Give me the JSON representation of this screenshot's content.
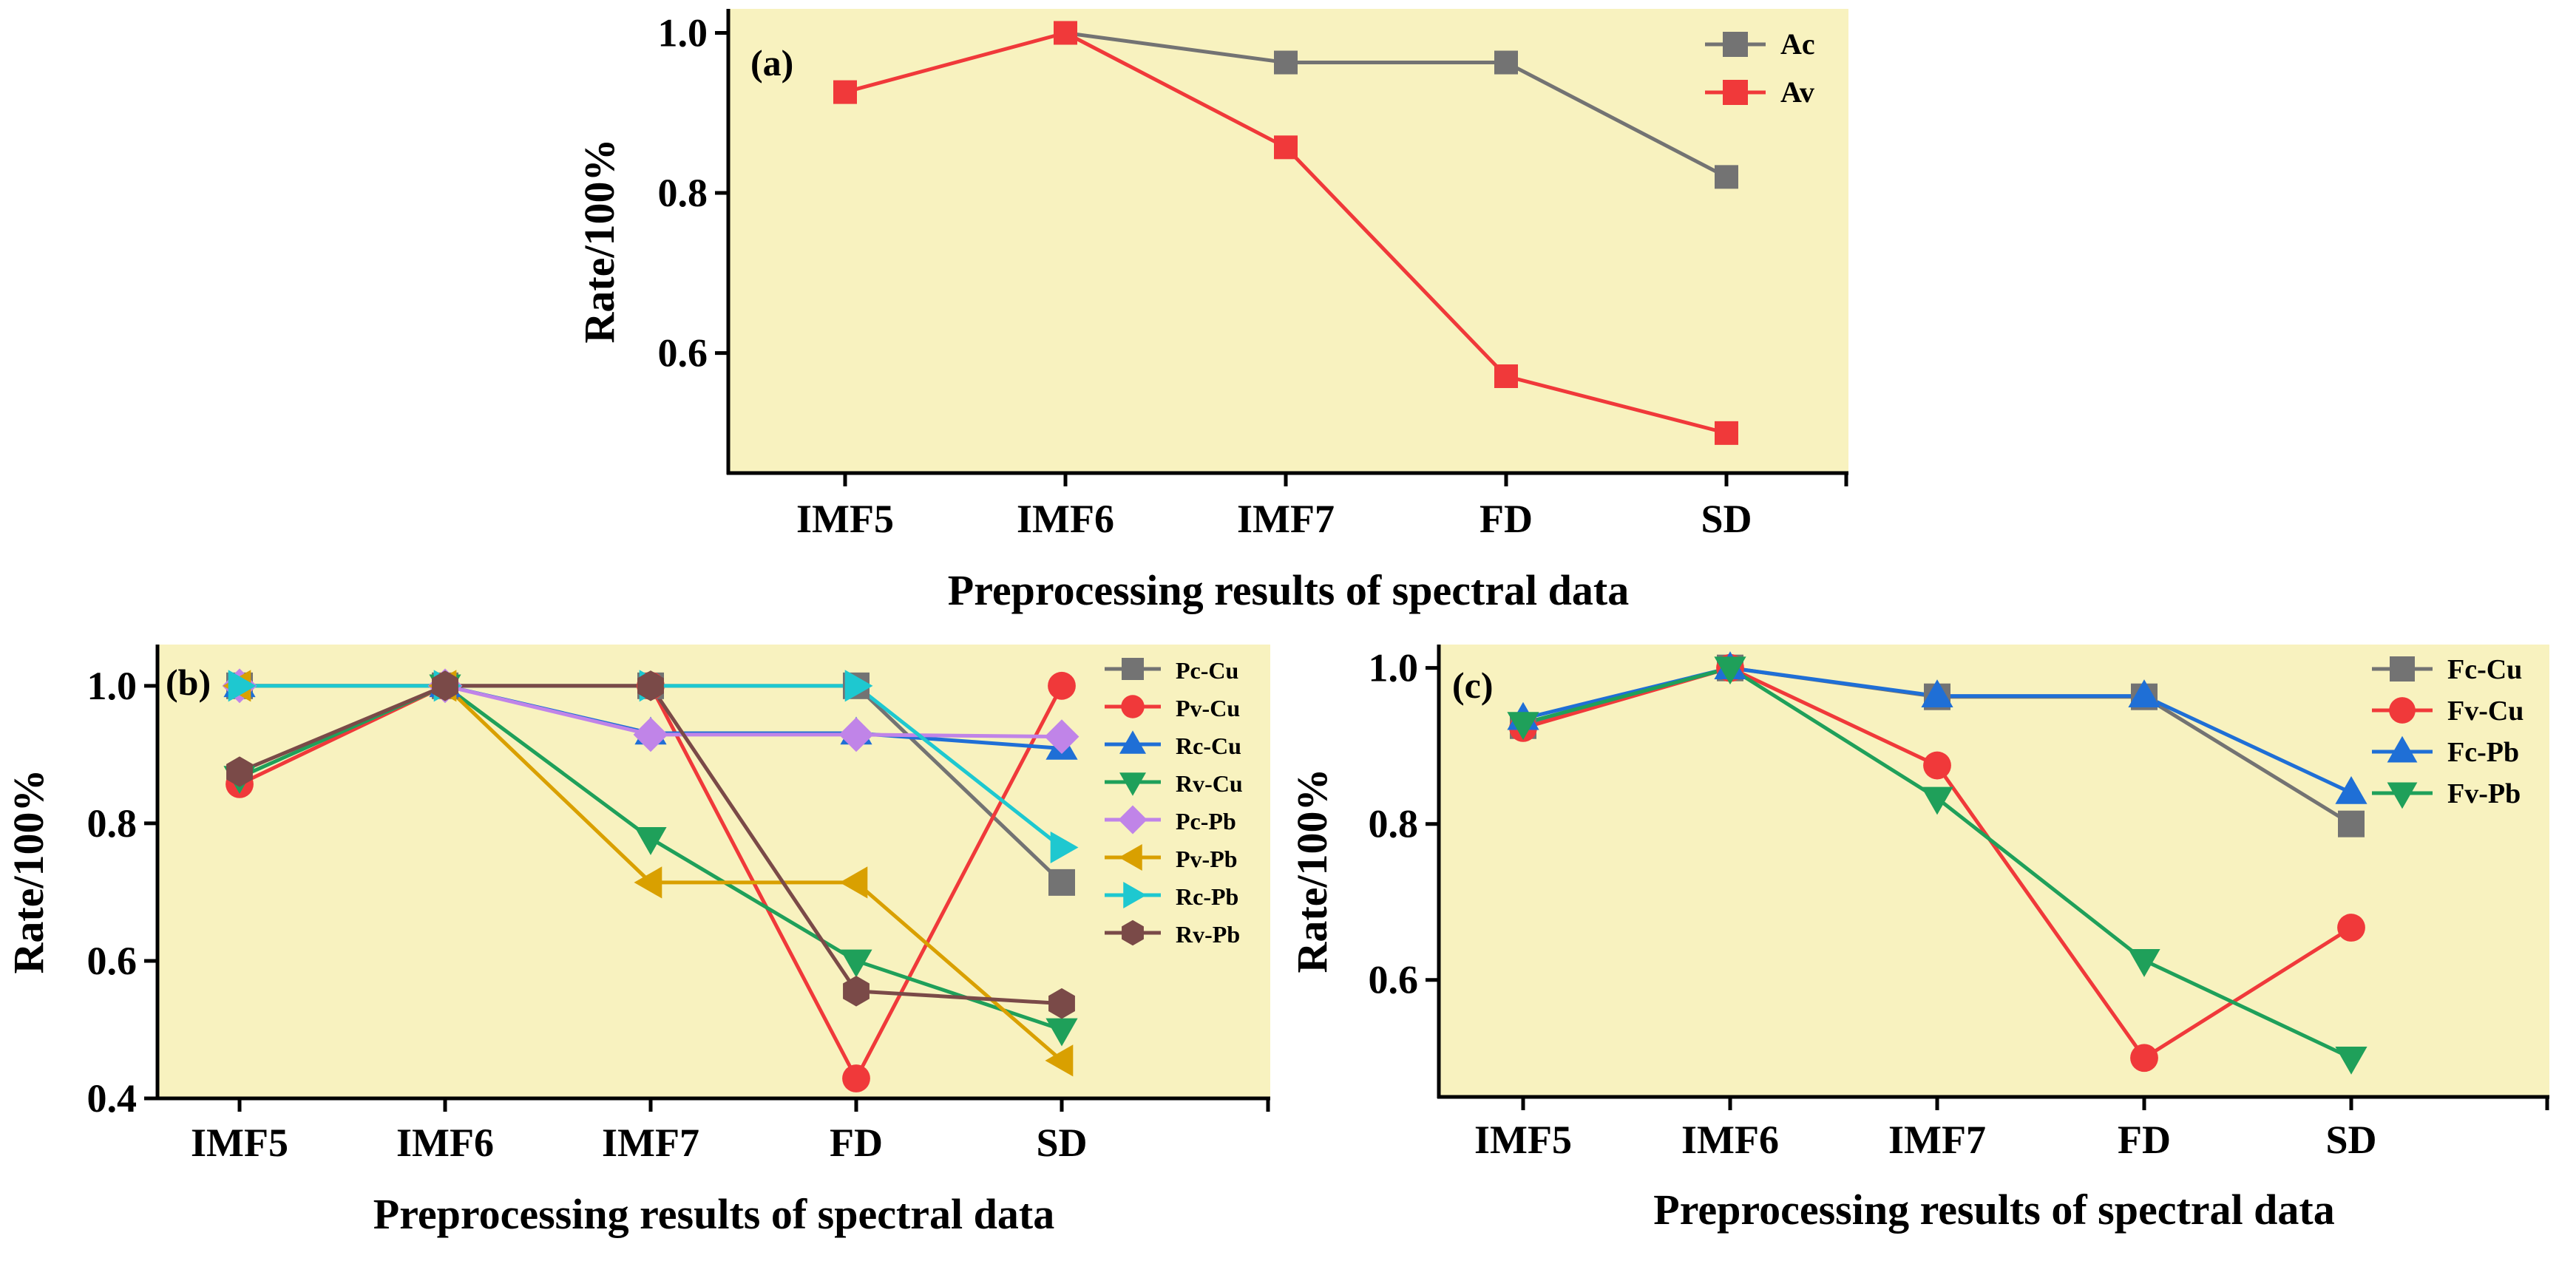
{
  "chart_data": [
    {
      "panel": "(a)",
      "type": "line",
      "categories": [
        "IMF5",
        "IMF6",
        "IMF7",
        "FD",
        "SD"
      ],
      "xlabel": "Preprocessing results of spectral data",
      "ylabel": "Rate/100%",
      "ylim": [
        0.45,
        1.03
      ],
      "yticks": [
        0.6,
        0.8,
        1.0
      ],
      "ytick_labels": [
        "0.6",
        "0.8",
        "1.0"
      ],
      "legend_position": "top-right",
      "series": [
        {
          "name": "Ac",
          "color": "#737373",
          "marker": "square",
          "values": [
            null,
            1.0,
            0.963,
            0.963,
            0.82
          ]
        },
        {
          "name": "Av",
          "color": "#f0393a",
          "marker": "square",
          "values": [
            0.926,
            1.0,
            0.857,
            0.571,
            0.5
          ]
        }
      ]
    },
    {
      "panel": "(b)",
      "type": "line",
      "categories": [
        "IMF5",
        "IMF6",
        "IMF7",
        "FD",
        "SD"
      ],
      "xlabel": "Preprocessing results of spectral data",
      "ylabel": "Rate/100%",
      "ylim": [
        0.4,
        1.06
      ],
      "yticks": [
        0.4,
        0.6,
        0.8,
        1.0
      ],
      "ytick_labels": [
        "0.4",
        "0.6",
        "0.8",
        "1.0"
      ],
      "legend_position": "top-right",
      "series": [
        {
          "name": "Pc-Cu",
          "color": "#737373",
          "marker": "square",
          "values": [
            1.0,
            1.0,
            1.0,
            1.0,
            0.714
          ]
        },
        {
          "name": "Pv-Cu",
          "color": "#f0393a",
          "marker": "circle",
          "values": [
            0.857,
            1.0,
            1.0,
            0.429,
            1.0
          ]
        },
        {
          "name": "Rc-Cu",
          "color": "#1f6fd6",
          "marker": "triangle-up",
          "values": [
            1.0,
            1.0,
            0.931,
            0.931,
            0.909
          ]
        },
        {
          "name": "Rv-Cu",
          "color": "#1fa05a",
          "marker": "triangle-down",
          "values": [
            0.867,
            1.0,
            0.778,
            0.6,
            0.5
          ]
        },
        {
          "name": "Pc-Pb",
          "color": "#c084e8",
          "marker": "diamond",
          "values": [
            1.0,
            1.0,
            0.929,
            0.929,
            0.926
          ]
        },
        {
          "name": "Pv-Pb",
          "color": "#d9a000",
          "marker": "triangle-left",
          "values": [
            1.0,
            1.0,
            0.714,
            0.714,
            0.455
          ]
        },
        {
          "name": "Rc-Pb",
          "color": "#1ec8d0",
          "marker": "triangle-right",
          "values": [
            1.0,
            1.0,
            1.0,
            1.0,
            0.765
          ]
        },
        {
          "name": "Rv-Pb",
          "color": "#7a4a48",
          "marker": "hexagon",
          "values": [
            0.875,
            1.0,
            1.0,
            0.556,
            0.538
          ]
        }
      ]
    },
    {
      "panel": "(c)",
      "type": "line",
      "categories": [
        "IMF5",
        "IMF6",
        "IMF7",
        "FD",
        "SD"
      ],
      "xlabel": "Preprocessing results of spectral data",
      "ylabel": "Rate/100%",
      "ylim": [
        0.45,
        1.03
      ],
      "yticks": [
        0.6,
        0.8,
        1.0
      ],
      "ytick_labels": [
        "0.6",
        "0.8",
        "1.0"
      ],
      "legend_position": "top-right",
      "series": [
        {
          "name": "Fc-Cu",
          "color": "#737373",
          "marker": "square",
          "values": [
            0.926,
            1.0,
            0.963,
            0.963,
            0.8
          ]
        },
        {
          "name": "Fv-Cu",
          "color": "#f0393a",
          "marker": "circle",
          "values": [
            0.923,
            1.0,
            0.875,
            0.5,
            0.667
          ]
        },
        {
          "name": "Fc-Pb",
          "color": "#1f6fd6",
          "marker": "triangle-up",
          "values": [
            0.935,
            1.0,
            0.964,
            0.964,
            0.84
          ]
        },
        {
          "name": "Fv-Pb",
          "color": "#1fa05a",
          "marker": "triangle-down",
          "values": [
            0.929,
            1.0,
            0.833,
            0.625,
            0.5
          ]
        }
      ]
    }
  ]
}
